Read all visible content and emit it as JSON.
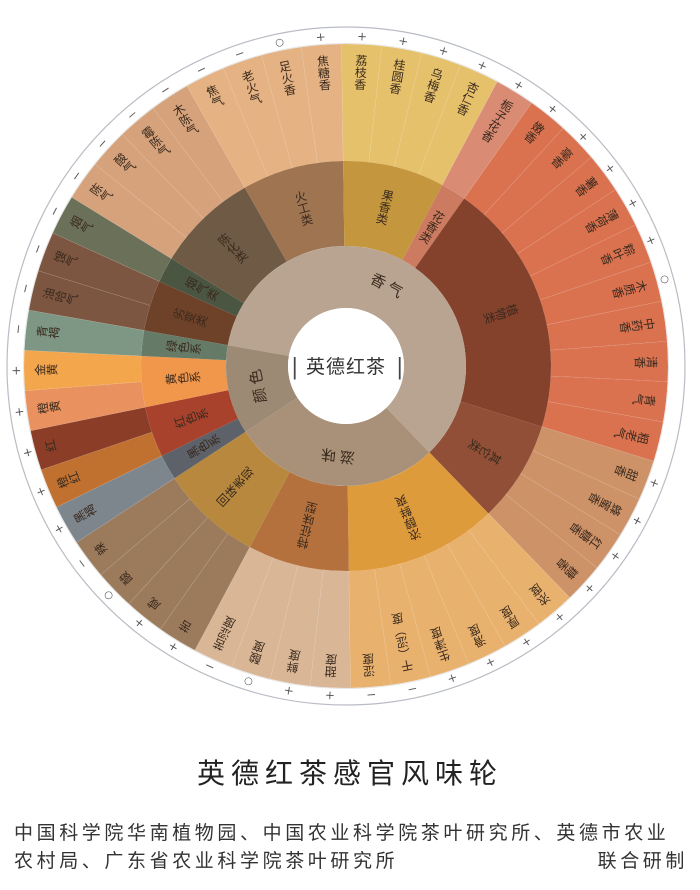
{
  "wheel": {
    "center_label": "英德红茶",
    "categories": [
      {
        "name": "香气",
        "color": "#b9a491",
        "groups": [
          {
            "name": "劣变类",
            "color": "#6e4129",
            "leaf_color": "#7d5641",
            "items": [
              {
                "name": "油哈气",
                "mark": "−"
              },
              {
                "name": "馊气",
                "mark": "−"
              }
            ]
          },
          {
            "name": "烟气类",
            "color": "#4b5642",
            "leaf_color": "#6b7159",
            "items": [
              {
                "name": "烟气",
                "mark": "−"
              }
            ]
          },
          {
            "name": "陈化类",
            "color": "#6e5a45",
            "leaf_color": "#d6a27b",
            "items": [
              {
                "name": "陈气",
                "mark": "−"
              },
              {
                "name": "酸气",
                "mark": "−"
              },
              {
                "name": "霉陈气",
                "mark": "−"
              },
              {
                "name": "木陈气",
                "mark": "−"
              }
            ]
          },
          {
            "name": "火工类",
            "color": "#9e7451",
            "leaf_color": "#e4b283",
            "items": [
              {
                "name": "焦气",
                "mark": "−"
              },
              {
                "name": "老火气",
                "mark": "−"
              },
              {
                "name": "足火香",
                "mark": "○"
              },
              {
                "name": "焦糖香",
                "mark": "+"
              }
            ]
          },
          {
            "name": "果香类",
            "color": "#c4963d",
            "leaf_color": "#e6c16b",
            "items": [
              {
                "name": "荔枝香",
                "mark": "+"
              },
              {
                "name": "桂圆香",
                "mark": "+"
              },
              {
                "name": "乌梅香",
                "mark": "+"
              },
              {
                "name": "杏仁香",
                "mark": "+"
              }
            ]
          },
          {
            "name": "花香类",
            "color": "#cd7b60",
            "leaf_color": "#d98b73",
            "items": [
              {
                "name": "栀子花香",
                "mark": "+"
              }
            ]
          },
          {
            "name": "植物类",
            "color": "#84412b",
            "leaf_color": "#da7250",
            "items": [
              {
                "name": "嫩香",
                "mark": "+"
              },
              {
                "name": "毫香",
                "mark": "+"
              },
              {
                "name": "薯香",
                "mark": "+"
              },
              {
                "name": "薄荷香",
                "mark": "+"
              },
              {
                "name": "粽叶香",
                "mark": "+"
              },
              {
                "name": "木质香",
                "mark": "○"
              },
              {
                "name": "中药香",
                "mark": ""
              },
              {
                "name": "清香",
                "mark": ""
              },
              {
                "name": "青气",
                "mark": ""
              },
              {
                "name": "粗老气",
                "mark": ""
              }
            ]
          },
          {
            "name": "其它类",
            "color": "#904f36",
            "leaf_color": "#ce9268",
            "items": [
              {
                "name": "甜香",
                "mark": "+"
              },
              {
                "name": "蜂蜜香",
                "mark": "+"
              },
              {
                "name": "红糖香",
                "mark": "+"
              },
              {
                "name": "糖香",
                "mark": "+"
              }
            ]
          }
        ]
      },
      {
        "name": "滋味",
        "color": "#a99179",
        "groups": [
          {
            "name": "浓醇鲜爽",
            "color": "#de9b3c",
            "leaf_color": "#e8b16d",
            "items": [
              {
                "name": "浓度",
                "mark": "+"
              },
              {
                "name": "厚度",
                "mark": "+"
              },
              {
                "name": "滑度",
                "mark": "+"
              },
              {
                "name": "生津度",
                "mark": "+"
              },
              {
                "name": "干（涩）度",
                "mark": "−"
              },
              {
                "name": "涩度",
                "mark": "−"
              }
            ]
          },
          {
            "name": "特征味型",
            "color": "#b4713d",
            "leaf_color": "#d9b696",
            "items": [
              {
                "name": "甜度",
                "mark": "+"
              },
              {
                "name": "鲜度",
                "mark": "+"
              },
              {
                "name": "酸度",
                "mark": "○"
              },
              {
                "name": "苦涩度",
                "mark": "−"
              }
            ]
          },
          {
            "name": "回味表现",
            "color": "#b8883e",
            "leaf_color": "#9c7b5d",
            "items": [
              {
                "name": "苦",
                "mark": "+"
              },
              {
                "name": "咸",
                "mark": "+"
              },
              {
                "name": "酸",
                "mark": "○"
              },
              {
                "name": "辣",
                "mark": "−"
              }
            ]
          }
        ]
      },
      {
        "name": "颜色",
        "color": "#9c8a74",
        "groups": [
          {
            "name": "黑色系",
            "color": "#5d6169",
            "leaf_color": "#7d858d",
            "items": [
              {
                "name": "黑褐",
                "mark": "+"
              }
            ]
          },
          {
            "name": "红色系",
            "color": "#a8422c",
            "leaf_color": "#c1712f",
            "items": [
              {
                "name": "橙红",
                "mark": "+",
                "color": "#c1712f"
              },
              {
                "name": "红",
                "mark": "+",
                "color": "#8b3d27"
              }
            ]
          },
          {
            "name": "黄色系",
            "color": "#f0974b",
            "leaf_color": "#e9925f",
            "items": [
              {
                "name": "橙黄",
                "mark": "+",
                "color": "#e9925f"
              },
              {
                "name": "金黄",
                "mark": "+",
                "color": "#f3a64b"
              }
            ]
          },
          {
            "name": "绿色系",
            "color": "#657b67",
            "leaf_color": "#7e9784",
            "items": [
              {
                "name": "青褐",
                "mark": "−"
              }
            ]
          }
        ]
      }
    ]
  },
  "footer": {
    "title": "英德红茶感官风味轮",
    "line1": "中国科学院华南植物园、中国农业科学院茶叶研究所、英德市农业",
    "line2": "农村局、广东省农业科学院茶叶研究所",
    "credit": "联合研制"
  }
}
